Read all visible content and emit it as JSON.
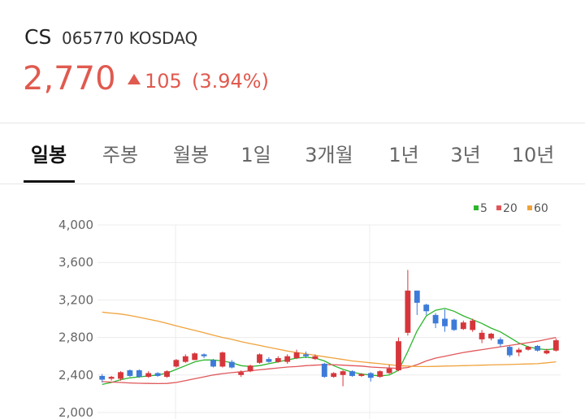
{
  "header": {
    "name": "CS",
    "code": "065770 KOSDAQ",
    "price": "2,770",
    "change": "105",
    "change_pct": "(3.94%)"
  },
  "tabs": {
    "labels": [
      "일봉",
      "주봉",
      "월봉",
      "1일",
      "3개월",
      "1년",
      "3년",
      "10년"
    ],
    "active": 0
  },
  "chart_data": {
    "type": "candlestick",
    "up_color": "#d6363b",
    "down_color": "#3d7bd9",
    "ylim": [
      2000,
      4000
    ],
    "yticks": [
      {
        "value": 2000,
        "label": "2,000"
      },
      {
        "value": 2400,
        "label": "2,400"
      },
      {
        "value": 2800,
        "label": "2,800"
      },
      {
        "value": 3200,
        "label": "3,200"
      },
      {
        "value": 3600,
        "label": "3,600"
      },
      {
        "value": 4000,
        "label": "4,000"
      }
    ],
    "grid": true,
    "legend": "top-right",
    "open": [
      2390,
      2360,
      2360,
      2450,
      2450,
      2380,
      2420,
      2380,
      2490,
      2540,
      2560,
      2620,
      2560,
      2490,
      2540,
      2400,
      2440,
      2530,
      2570,
      2540,
      2540,
      2580,
      2620,
      2570,
      2520,
      2380,
      2400,
      2440,
      2390,
      2420,
      2380,
      2420,
      2450,
      2850,
      3300,
      3150,
      3040,
      3000,
      2990,
      2890,
      2880,
      2780,
      2790,
      2780,
      2700,
      2640,
      2670,
      2710,
      2630,
      2660
    ],
    "high": [
      2410,
      2390,
      2440,
      2460,
      2460,
      2440,
      2430,
      2450,
      2570,
      2620,
      2640,
      2630,
      2570,
      2650,
      2560,
      2450,
      2510,
      2630,
      2590,
      2600,
      2620,
      2670,
      2650,
      2620,
      2530,
      2430,
      2450,
      2450,
      2420,
      2430,
      2450,
      2510,
      2800,
      3520,
      3300,
      3160,
      3060,
      3100,
      3000,
      2980,
      3000,
      2880,
      2850,
      2800,
      2710,
      2690,
      2710,
      2720,
      2680,
      2790
    ],
    "low": [
      2320,
      2340,
      2340,
      2380,
      2370,
      2370,
      2380,
      2370,
      2480,
      2530,
      2560,
      2580,
      2480,
      2480,
      2470,
      2380,
      2430,
      2520,
      2530,
      2530,
      2520,
      2570,
      2580,
      2560,
      2370,
      2370,
      2280,
      2380,
      2380,
      2330,
      2370,
      2410,
      2440,
      2820,
      3040,
      3040,
      2900,
      2860,
      2870,
      2880,
      2860,
      2740,
      2770,
      2700,
      2590,
      2600,
      2660,
      2650,
      2620,
      2650
    ],
    "close": [
      2350,
      2380,
      2430,
      2390,
      2380,
      2420,
      2390,
      2440,
      2560,
      2600,
      2630,
      2600,
      2490,
      2640,
      2480,
      2430,
      2500,
      2620,
      2540,
      2580,
      2600,
      2640,
      2600,
      2600,
      2380,
      2420,
      2440,
      2390,
      2410,
      2370,
      2440,
      2470,
      2760,
      3300,
      3170,
      3080,
      2950,
      2920,
      2880,
      2960,
      2980,
      2850,
      2840,
      2730,
      2610,
      2670,
      2700,
      2660,
      2660,
      2770
    ],
    "series": [
      {
        "name": "5",
        "color": "#2cb52c",
        "values": [
          2300,
          2320,
          2350,
          2370,
          2380,
          2390,
          2400,
          2420,
          2460,
          2500,
          2540,
          2560,
          2560,
          2550,
          2530,
          2500,
          2490,
          2500,
          2520,
          2540,
          2560,
          2580,
          2590,
          2580,
          2550,
          2500,
          2460,
          2430,
          2410,
          2400,
          2390,
          2400,
          2450,
          2650,
          2870,
          3030,
          3090,
          3110,
          3080,
          3030,
          2990,
          2950,
          2900,
          2860,
          2800,
          2740,
          2700,
          2680,
          2670,
          2680
        ]
      },
      {
        "name": "20",
        "color": "#e0575a",
        "values": [
          2330,
          2325,
          2320,
          2315,
          2312,
          2310,
          2308,
          2310,
          2320,
          2340,
          2360,
          2380,
          2400,
          2415,
          2425,
          2435,
          2445,
          2455,
          2465,
          2475,
          2485,
          2490,
          2500,
          2505,
          2510,
          2510,
          2505,
          2500,
          2495,
          2485,
          2480,
          2475,
          2470,
          2480,
          2510,
          2550,
          2580,
          2600,
          2620,
          2640,
          2655,
          2670,
          2685,
          2700,
          2715,
          2730,
          2745,
          2760,
          2780,
          2800
        ]
      },
      {
        "name": "60",
        "color": "#f0a23c",
        "values": [
          3070,
          3060,
          3050,
          3035,
          3015,
          2995,
          2975,
          2950,
          2925,
          2900,
          2875,
          2850,
          2825,
          2800,
          2780,
          2755,
          2735,
          2715,
          2695,
          2675,
          2655,
          2640,
          2625,
          2610,
          2595,
          2580,
          2565,
          2550,
          2540,
          2530,
          2520,
          2510,
          2500,
          2495,
          2490,
          2490,
          2492,
          2495,
          2497,
          2500,
          2502,
          2505,
          2507,
          2510,
          2512,
          2515,
          2518,
          2520,
          2530,
          2540
        ]
      }
    ]
  }
}
